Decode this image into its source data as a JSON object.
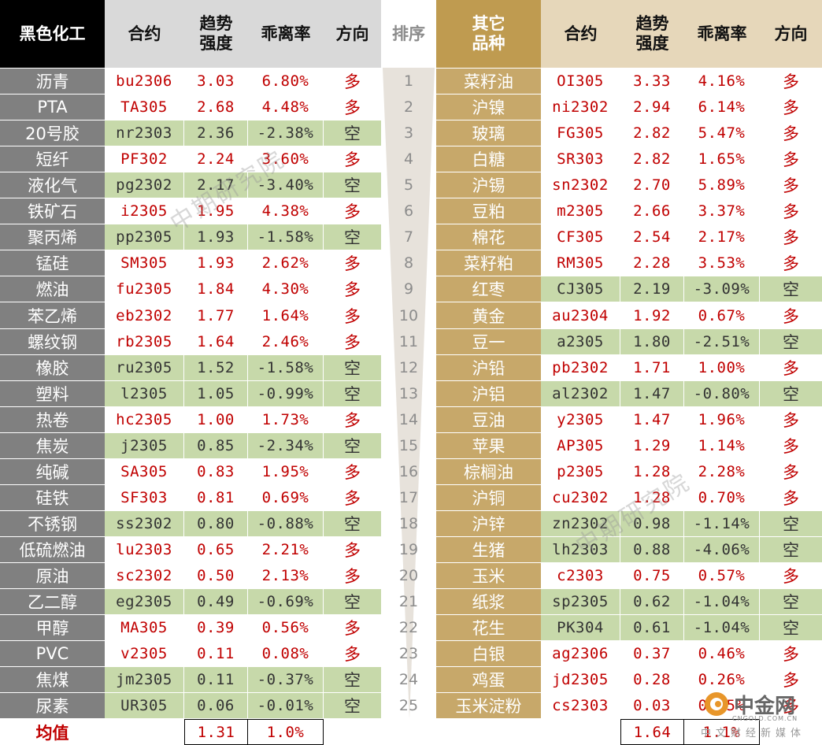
{
  "left_header": {
    "sector": "黑色化工",
    "contract": "合约",
    "trend": "趋势强度",
    "deviation": "乖离率",
    "direction": "方向"
  },
  "rank_header": "排序",
  "right_header": {
    "sector": "其它品种",
    "contract": "合约",
    "trend": "趋势强度",
    "deviation": "乖离率",
    "direction": "方向"
  },
  "left_rows": [
    {
      "name": "沥青",
      "contract": "bu2306",
      "trend": "3.03",
      "dev": "6.80%",
      "dir": "多"
    },
    {
      "name": "PTA",
      "contract": "TA305",
      "trend": "2.68",
      "dev": "4.48%",
      "dir": "多"
    },
    {
      "name": "20号胶",
      "contract": "nr2303",
      "trend": "2.36",
      "dev": "-2.38%",
      "dir": "空"
    },
    {
      "name": "短纤",
      "contract": "PF302",
      "trend": "2.24",
      "dev": "3.60%",
      "dir": "多"
    },
    {
      "name": "液化气",
      "contract": "pg2302",
      "trend": "2.17",
      "dev": "-3.40%",
      "dir": "空"
    },
    {
      "name": "铁矿石",
      "contract": "i2305",
      "trend": "1.95",
      "dev": "4.38%",
      "dir": "多"
    },
    {
      "name": "聚丙烯",
      "contract": "pp2305",
      "trend": "1.93",
      "dev": "-1.58%",
      "dir": "空"
    },
    {
      "name": "锰硅",
      "contract": "SM305",
      "trend": "1.93",
      "dev": "2.62%",
      "dir": "多"
    },
    {
      "name": "燃油",
      "contract": "fu2305",
      "trend": "1.84",
      "dev": "4.30%",
      "dir": "多"
    },
    {
      "name": "苯乙烯",
      "contract": "eb2302",
      "trend": "1.77",
      "dev": "1.64%",
      "dir": "多"
    },
    {
      "name": "螺纹钢",
      "contract": "rb2305",
      "trend": "1.64",
      "dev": "2.46%",
      "dir": "多"
    },
    {
      "name": "橡胶",
      "contract": "ru2305",
      "trend": "1.52",
      "dev": "-1.58%",
      "dir": "空"
    },
    {
      "name": "塑料",
      "contract": "l2305",
      "trend": "1.05",
      "dev": "-0.99%",
      "dir": "空"
    },
    {
      "name": "热卷",
      "contract": "hc2305",
      "trend": "1.00",
      "dev": "1.73%",
      "dir": "多"
    },
    {
      "name": "焦炭",
      "contract": "j2305",
      "trend": "0.85",
      "dev": "-2.34%",
      "dir": "空"
    },
    {
      "name": "纯碱",
      "contract": "SA305",
      "trend": "0.83",
      "dev": "1.95%",
      "dir": "多"
    },
    {
      "name": "硅铁",
      "contract": "SF303",
      "trend": "0.81",
      "dev": "0.69%",
      "dir": "多"
    },
    {
      "name": "不锈钢",
      "contract": "ss2302",
      "trend": "0.80",
      "dev": "-0.88%",
      "dir": "空"
    },
    {
      "name": "低硫燃油",
      "contract": "lu2303",
      "trend": "0.65",
      "dev": "2.21%",
      "dir": "多"
    },
    {
      "name": "原油",
      "contract": "sc2302",
      "trend": "0.50",
      "dev": "2.13%",
      "dir": "多"
    },
    {
      "name": "乙二醇",
      "contract": "eg2305",
      "trend": "0.49",
      "dev": "-0.69%",
      "dir": "空"
    },
    {
      "name": "甲醇",
      "contract": "MA305",
      "trend": "0.39",
      "dev": "0.56%",
      "dir": "多"
    },
    {
      "name": "PVC",
      "contract": "v2305",
      "trend": "0.11",
      "dev": "0.08%",
      "dir": "多"
    },
    {
      "name": "焦煤",
      "contract": "jm2305",
      "trend": "0.11",
      "dev": "-0.37%",
      "dir": "空"
    },
    {
      "name": "尿素",
      "contract": "UR305",
      "trend": "0.06",
      "dev": "-0.01%",
      "dir": "空"
    }
  ],
  "right_rows": [
    {
      "name": "菜籽油",
      "contract": "OI305",
      "trend": "3.33",
      "dev": "4.16%",
      "dir": "多"
    },
    {
      "name": "沪镍",
      "contract": "ni2302",
      "trend": "2.94",
      "dev": "6.14%",
      "dir": "多"
    },
    {
      "name": "玻璃",
      "contract": "FG305",
      "trend": "2.82",
      "dev": "5.47%",
      "dir": "多"
    },
    {
      "name": "白糖",
      "contract": "SR303",
      "trend": "2.82",
      "dev": "1.65%",
      "dir": "多"
    },
    {
      "name": "沪锡",
      "contract": "sn2302",
      "trend": "2.70",
      "dev": "5.89%",
      "dir": "多"
    },
    {
      "name": "豆粕",
      "contract": "m2305",
      "trend": "2.66",
      "dev": "3.37%",
      "dir": "多"
    },
    {
      "name": "棉花",
      "contract": "CF305",
      "trend": "2.54",
      "dev": "2.17%",
      "dir": "多"
    },
    {
      "name": "菜籽粕",
      "contract": "RM305",
      "trend": "2.28",
      "dev": "3.53%",
      "dir": "多"
    },
    {
      "name": "红枣",
      "contract": "CJ305",
      "trend": "2.19",
      "dev": "-3.09%",
      "dir": "空"
    },
    {
      "name": "黄金",
      "contract": "au2304",
      "trend": "1.92",
      "dev": "0.67%",
      "dir": "多"
    },
    {
      "name": "豆一",
      "contract": "a2305",
      "trend": "1.80",
      "dev": "-2.51%",
      "dir": "空"
    },
    {
      "name": "沪铅",
      "contract": "pb2302",
      "trend": "1.71",
      "dev": "1.00%",
      "dir": "多"
    },
    {
      "name": "沪铝",
      "contract": "al2302",
      "trend": "1.47",
      "dev": "-0.80%",
      "dir": "空"
    },
    {
      "name": "豆油",
      "contract": "y2305",
      "trend": "1.47",
      "dev": "1.96%",
      "dir": "多"
    },
    {
      "name": "苹果",
      "contract": "AP305",
      "trend": "1.29",
      "dev": "1.14%",
      "dir": "多"
    },
    {
      "name": "棕榈油",
      "contract": "p2305",
      "trend": "1.28",
      "dev": "2.28%",
      "dir": "多"
    },
    {
      "name": "沪铜",
      "contract": "cu2302",
      "trend": "1.28",
      "dev": "0.70%",
      "dir": "多"
    },
    {
      "name": "沪锌",
      "contract": "zn2302",
      "trend": "0.98",
      "dev": "-1.14%",
      "dir": "空"
    },
    {
      "name": "生猪",
      "contract": "lh2303",
      "trend": "0.88",
      "dev": "-4.06%",
      "dir": "空"
    },
    {
      "name": "玉米",
      "contract": "c2303",
      "trend": "0.75",
      "dev": "0.57%",
      "dir": "多"
    },
    {
      "name": "纸浆",
      "contract": "sp2305",
      "trend": "0.62",
      "dev": "-1.04%",
      "dir": "空"
    },
    {
      "name": "花生",
      "contract": "PK304",
      "trend": "0.61",
      "dev": "-1.04%",
      "dir": "空"
    },
    {
      "name": "白银",
      "contract": "ag2306",
      "trend": "0.37",
      "dev": "0.46%",
      "dir": "多"
    },
    {
      "name": "鸡蛋",
      "contract": "jd2305",
      "trend": "0.28",
      "dev": "0.26%",
      "dir": "多"
    },
    {
      "name": "玉米淀粉",
      "contract": "cs2303",
      "trend": "0.03",
      "dev": "0.05%",
      "dir": "多"
    }
  ],
  "footer": {
    "label": "均值",
    "left_trend": "1.31",
    "left_dev": "1.0%",
    "right_trend": "1.64",
    "right_dev": "1.1%"
  },
  "watermark": "中期研究院",
  "brand": {
    "name": "中金网",
    "domain": "CNGOLD.COM.CN",
    "tagline": "中文财经新媒体"
  },
  "colors": {
    "black_header": "#000000",
    "gray_header": "#d9d9d9",
    "gray_name_col": "#808080",
    "gold_header": "#bf9b50",
    "gold_name_col": "#c7a86a",
    "green_row": "#c7d9aa",
    "red_text": "#c00000",
    "dark_text": "#333333"
  }
}
